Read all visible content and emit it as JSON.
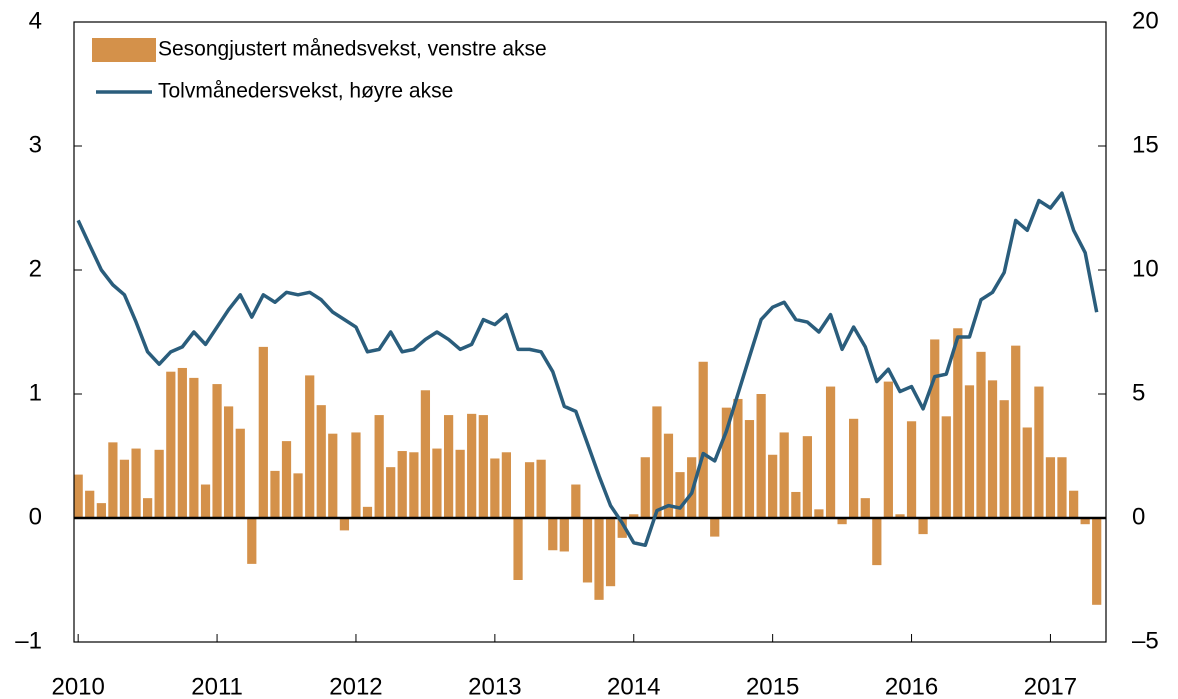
{
  "chart_data": {
    "type": "bar",
    "xlim": [
      2009.97,
      2017.4
    ],
    "xticks": [
      2010,
      2011,
      2012,
      2013,
      2014,
      2015,
      2016,
      2017
    ],
    "ylim": [
      -1,
      4
    ],
    "yticks": [
      {
        "value": -1,
        "label": "–1"
      },
      0,
      1,
      2,
      3,
      4
    ],
    "y2lim": [
      -5,
      20
    ],
    "y2ticks": [
      {
        "value": -5,
        "label": "–5"
      },
      0,
      5,
      10,
      15,
      20
    ],
    "legend": "upper left",
    "x": [
      2010.0,
      2010.083,
      2010.167,
      2010.25,
      2010.333,
      2010.417,
      2010.5,
      2010.583,
      2010.667,
      2010.75,
      2010.833,
      2010.917,
      2011.0,
      2011.083,
      2011.167,
      2011.25,
      2011.333,
      2011.417,
      2011.5,
      2011.583,
      2011.667,
      2011.75,
      2011.833,
      2011.917,
      2012.0,
      2012.083,
      2012.167,
      2012.25,
      2012.333,
      2012.417,
      2012.5,
      2012.583,
      2012.667,
      2012.75,
      2012.833,
      2012.917,
      2013.0,
      2013.083,
      2013.167,
      2013.25,
      2013.333,
      2013.417,
      2013.5,
      2013.583,
      2013.667,
      2013.75,
      2013.833,
      2013.917,
      2014.0,
      2014.083,
      2014.167,
      2014.25,
      2014.333,
      2014.417,
      2014.5,
      2014.583,
      2014.667,
      2014.75,
      2014.833,
      2014.917,
      2015.0,
      2015.083,
      2015.167,
      2015.25,
      2015.333,
      2015.417,
      2015.5,
      2015.583,
      2015.667,
      2015.75,
      2015.833,
      2015.917,
      2016.0,
      2016.083,
      2016.167,
      2016.25,
      2016.333,
      2016.417,
      2016.5,
      2016.583,
      2016.667,
      2016.75,
      2016.833,
      2016.917,
      2017.0,
      2017.083,
      2017.167,
      2017.25,
      2017.333
    ],
    "series": [
      {
        "name": "Sesongjustert månedsvekst, venstre akse",
        "type": "bar",
        "color": "#d4914a",
        "values": [
          0.35,
          0.22,
          0.12,
          0.61,
          0.47,
          0.56,
          0.16,
          0.55,
          1.18,
          1.21,
          1.13,
          0.27,
          1.08,
          0.9,
          0.72,
          -0.37,
          1.38,
          0.38,
          0.62,
          0.36,
          1.15,
          0.91,
          0.68,
          -0.1,
          0.69,
          0.09,
          0.83,
          0.41,
          0.54,
          0.53,
          1.03,
          0.56,
          0.83,
          0.55,
          0.84,
          0.83,
          0.48,
          0.53,
          -0.5,
          0.45,
          0.47,
          -0.26,
          -0.27,
          0.27,
          -0.52,
          -0.66,
          -0.55,
          -0.16,
          0.03,
          0.49,
          0.9,
          0.68,
          0.37,
          0.49,
          1.26,
          -0.15,
          0.89,
          0.96,
          0.79,
          1.0,
          0.51,
          0.69,
          0.21,
          0.66,
          0.07,
          1.06,
          -0.05,
          0.8,
          0.16,
          -0.38,
          1.1,
          0.03,
          0.78,
          -0.13,
          1.44,
          0.82,
          1.53,
          1.07,
          1.34,
          1.11,
          0.95,
          1.39,
          0.73,
          1.06,
          0.49,
          0.49,
          0.22,
          -0.05,
          -0.7
        ]
      },
      {
        "name": "Tolvmånedersvekst, høyre akse",
        "type": "line",
        "axis": "y2",
        "color": "#2a5d7c",
        "values": [
          12.0,
          11.0,
          10.0,
          9.4,
          9.0,
          7.9,
          6.7,
          6.2,
          6.7,
          6.9,
          7.5,
          7.0,
          7.7,
          8.4,
          9.0,
          8.1,
          9.0,
          8.7,
          9.1,
          9.0,
          9.1,
          8.8,
          8.3,
          8.0,
          7.7,
          6.7,
          6.8,
          7.5,
          6.7,
          6.8,
          7.2,
          7.5,
          7.2,
          6.8,
          7.0,
          8.0,
          7.8,
          8.2,
          6.8,
          6.8,
          6.7,
          5.9,
          4.5,
          4.3,
          3.0,
          1.7,
          0.5,
          -0.2,
          -1.0,
          -1.1,
          0.3,
          0.5,
          0.4,
          1.0,
          2.6,
          2.3,
          3.5,
          5.0,
          6.5,
          8.0,
          8.5,
          8.7,
          8.0,
          7.9,
          7.5,
          8.2,
          6.8,
          7.7,
          6.9,
          5.5,
          6.0,
          5.1,
          5.3,
          4.4,
          5.7,
          5.8,
          7.3,
          7.3,
          8.8,
          9.1,
          9.9,
          12.0,
          11.6,
          12.8,
          12.5,
          13.1,
          11.6,
          10.7,
          8.3
        ]
      }
    ]
  }
}
